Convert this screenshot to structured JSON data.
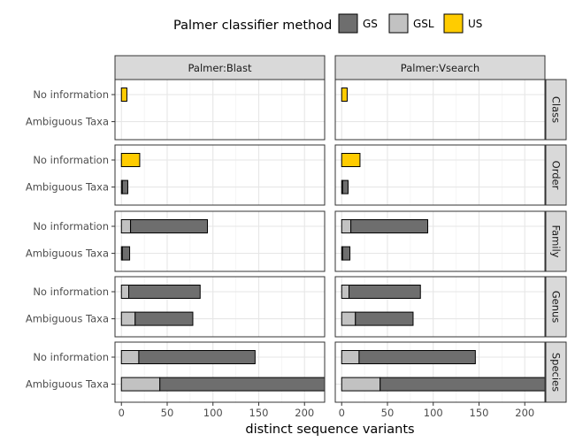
{
  "chart_data": {
    "type": "bar",
    "orientation": "horizontal",
    "stacked": true,
    "xlabel": "distinct sequence variants",
    "xlim": [
      -7,
      222
    ],
    "x_ticks": [
      0,
      50,
      100,
      150,
      200
    ],
    "categories": [
      "No information",
      "Ambiguous Taxa"
    ],
    "columns": [
      "Palmer:Blast",
      "Palmer:Vsearch"
    ],
    "rows": [
      "Class",
      "Order",
      "Family",
      "Genus",
      "Species"
    ],
    "legend": {
      "title": "Palmer classifier method",
      "position": "top",
      "items": [
        {
          "key": "GS",
          "label": "GS",
          "color": "#6e6e6e"
        },
        {
          "key": "GSL",
          "label": "GSL",
          "color": "#c2c2c2"
        },
        {
          "key": "US",
          "label": "US",
          "color": "#ffcc00"
        }
      ]
    },
    "grid": true,
    "panels": [
      {
        "column": "Palmer:Blast",
        "row": "Class",
        "bars": [
          {
            "category": "No information",
            "segments": [
              {
                "method": "US",
                "value": 6
              }
            ]
          },
          {
            "category": "Ambiguous Taxa",
            "segments": []
          }
        ]
      },
      {
        "column": "Palmer:Blast",
        "row": "Order",
        "bars": [
          {
            "category": "No information",
            "segments": [
              {
                "method": "US",
                "value": 20
              }
            ]
          },
          {
            "category": "Ambiguous Taxa",
            "segments": [
              {
                "method": "GSL",
                "value": 1
              },
              {
                "method": "GS",
                "value": 6
              }
            ]
          }
        ]
      },
      {
        "column": "Palmer:Blast",
        "row": "Family",
        "bars": [
          {
            "category": "No information",
            "segments": [
              {
                "method": "GSL",
                "value": 10
              },
              {
                "method": "GS",
                "value": 84
              }
            ]
          },
          {
            "category": "Ambiguous Taxa",
            "segments": [
              {
                "method": "GSL",
                "value": 1
              },
              {
                "method": "GS",
                "value": 8
              }
            ]
          }
        ]
      },
      {
        "column": "Palmer:Blast",
        "row": "Genus",
        "bars": [
          {
            "category": "No information",
            "segments": [
              {
                "method": "GSL",
                "value": 8
              },
              {
                "method": "GS",
                "value": 78
              }
            ]
          },
          {
            "category": "Ambiguous Taxa",
            "segments": [
              {
                "method": "GSL",
                "value": 15
              },
              {
                "method": "GS",
                "value": 63
              }
            ]
          }
        ]
      },
      {
        "column": "Palmer:Blast",
        "row": "Species",
        "bars": [
          {
            "category": "No information",
            "segments": [
              {
                "method": "GSL",
                "value": 19
              },
              {
                "method": "GS",
                "value": 127
              }
            ]
          },
          {
            "category": "Ambiguous Taxa",
            "segments": [
              {
                "method": "GSL",
                "value": 42
              },
              {
                "method": "GS",
                "value": 180
              }
            ]
          }
        ]
      },
      {
        "column": "Palmer:Vsearch",
        "row": "Class",
        "bars": [
          {
            "category": "No information",
            "segments": [
              {
                "method": "US",
                "value": 6
              }
            ]
          },
          {
            "category": "Ambiguous Taxa",
            "segments": []
          }
        ]
      },
      {
        "column": "Palmer:Vsearch",
        "row": "Order",
        "bars": [
          {
            "category": "No information",
            "segments": [
              {
                "method": "US",
                "value": 20
              }
            ]
          },
          {
            "category": "Ambiguous Taxa",
            "segments": [
              {
                "method": "GSL",
                "value": 1
              },
              {
                "method": "GS",
                "value": 6
              }
            ]
          }
        ]
      },
      {
        "column": "Palmer:Vsearch",
        "row": "Family",
        "bars": [
          {
            "category": "No information",
            "segments": [
              {
                "method": "GSL",
                "value": 10
              },
              {
                "method": "GS",
                "value": 84
              }
            ]
          },
          {
            "category": "Ambiguous Taxa",
            "segments": [
              {
                "method": "GSL",
                "value": 1
              },
              {
                "method": "GS",
                "value": 8
              }
            ]
          }
        ]
      },
      {
        "column": "Palmer:Vsearch",
        "row": "Genus",
        "bars": [
          {
            "category": "No information",
            "segments": [
              {
                "method": "GSL",
                "value": 8
              },
              {
                "method": "GS",
                "value": 78
              }
            ]
          },
          {
            "category": "Ambiguous Taxa",
            "segments": [
              {
                "method": "GSL",
                "value": 15
              },
              {
                "method": "GS",
                "value": 63
              }
            ]
          }
        ]
      },
      {
        "column": "Palmer:Vsearch",
        "row": "Species",
        "bars": [
          {
            "category": "No information",
            "segments": [
              {
                "method": "GSL",
                "value": 19
              },
              {
                "method": "GS",
                "value": 127
              }
            ]
          },
          {
            "category": "Ambiguous Taxa",
            "segments": [
              {
                "method": "GSL",
                "value": 42
              },
              {
                "method": "GS",
                "value": 180
              }
            ]
          }
        ]
      }
    ]
  }
}
